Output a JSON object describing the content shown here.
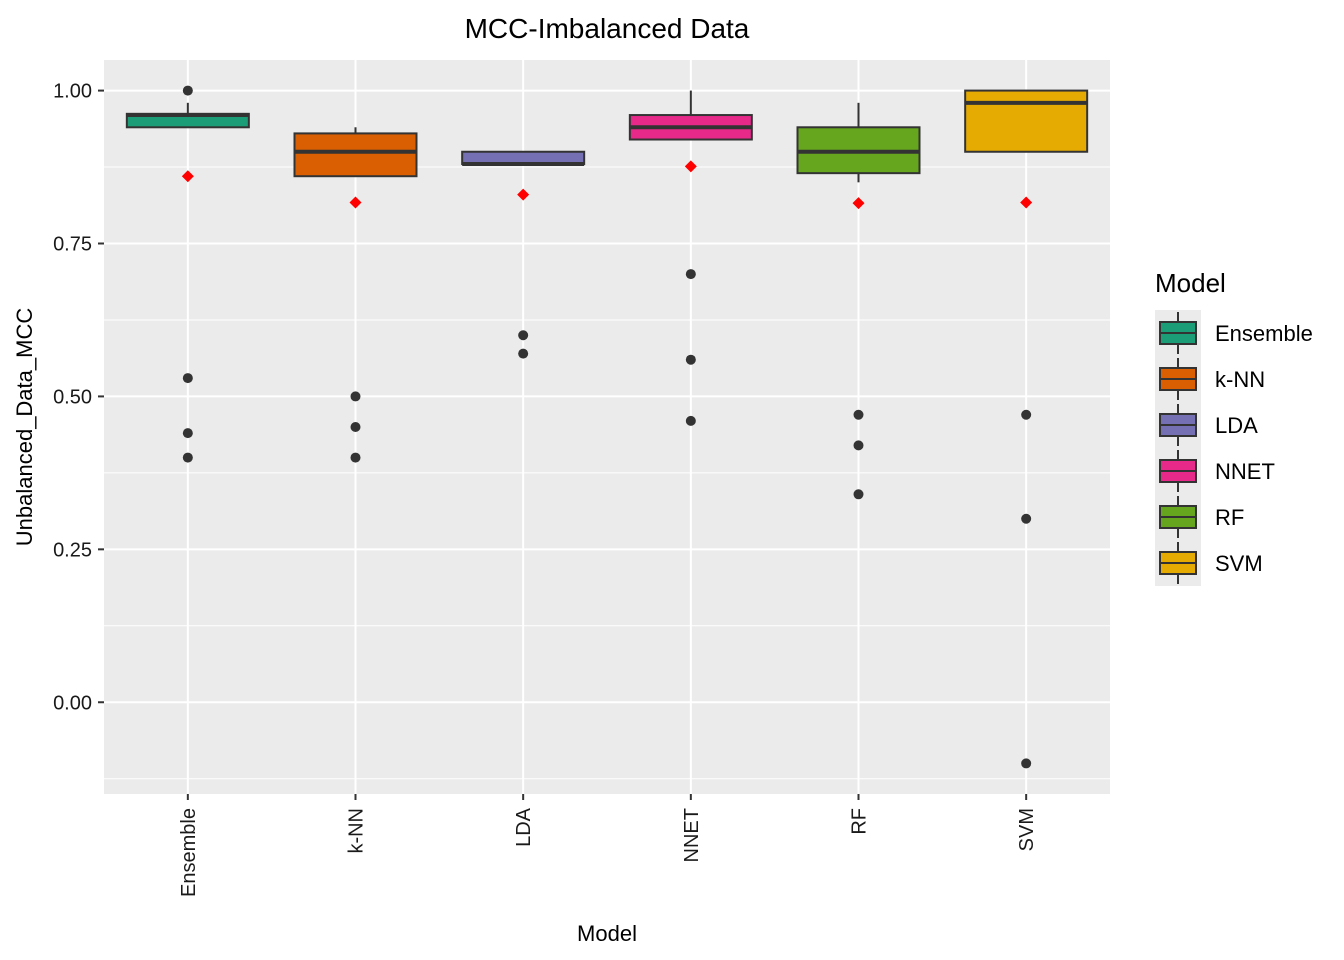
{
  "chart_data": {
    "type": "boxplot",
    "title": "MCC-Imbalanced Data",
    "xlabel": "Model",
    "ylabel": "Unbalanced_Data_MCC",
    "ylim": [
      -0.15,
      1.05
    ],
    "y_ticks": [
      0.0,
      0.25,
      0.5,
      0.75,
      1.0
    ],
    "y_tick_labels": [
      "0.00",
      "0.25",
      "0.50",
      "0.75",
      "1.00"
    ],
    "grid": true,
    "legend": {
      "title": "Model",
      "placement": "right"
    },
    "categories": [
      "Ensemble",
      "k-NN",
      "LDA",
      "NNET",
      "RF",
      "SVM"
    ],
    "series": [
      {
        "name": "Ensemble",
        "color": "#1B9E77",
        "q1": 0.94,
        "median": 0.96,
        "q3": 0.962,
        "whisker_low": 0.94,
        "whisker_high": 0.98,
        "outliers": [
          1.0,
          0.53,
          0.44,
          0.4
        ],
        "mean": 0.86
      },
      {
        "name": "k-NN",
        "color": "#D95F02",
        "q1": 0.86,
        "median": 0.9,
        "q3": 0.93,
        "whisker_low": 0.86,
        "whisker_high": 0.94,
        "outliers": [
          0.5,
          0.45,
          0.4
        ],
        "mean": 0.817
      },
      {
        "name": "LDA",
        "color": "#7570B3",
        "q1": 0.88,
        "median": 0.88,
        "q3": 0.9,
        "whisker_low": 0.88,
        "whisker_high": 0.9,
        "outliers": [
          0.6,
          0.57
        ],
        "mean": 0.83
      },
      {
        "name": "NNET",
        "color": "#E7298A",
        "q1": 0.92,
        "median": 0.94,
        "q3": 0.96,
        "whisker_low": 0.92,
        "whisker_high": 1.0,
        "outliers": [
          0.7,
          0.56,
          0.46
        ],
        "mean": 0.876
      },
      {
        "name": "RF",
        "color": "#66A61E",
        "q1": 0.865,
        "median": 0.9,
        "q3": 0.94,
        "whisker_low": 0.85,
        "whisker_high": 0.98,
        "outliers": [
          0.47,
          0.42,
          0.34
        ],
        "mean": 0.816
      },
      {
        "name": "SVM",
        "color": "#E6AB02",
        "q1": 0.9,
        "median": 0.98,
        "q3": 1.0,
        "whisker_low": 0.9,
        "whisker_high": 1.0,
        "outliers": [
          0.47,
          0.3,
          -0.1
        ],
        "mean": 0.817
      }
    ],
    "colors": {
      "panel_background": "#EBEBEB",
      "grid": "#FFFFFF",
      "mean_marker": "#FF0000",
      "outlier": "#333333",
      "text": "#000000",
      "tick": "#333333"
    }
  }
}
